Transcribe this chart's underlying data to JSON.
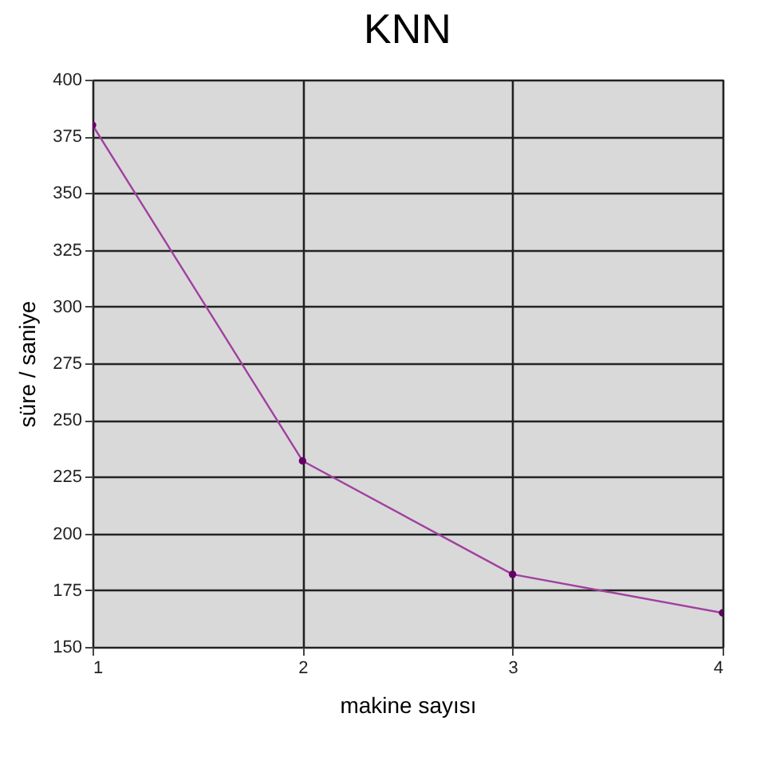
{
  "chart_data": {
    "type": "line",
    "title": "KNN",
    "xlabel": "makine sayısı",
    "ylabel": "süre / saniye",
    "x": [
      1,
      2,
      3,
      4
    ],
    "series": [
      {
        "color": "#a040a0",
        "values": [
          380,
          232,
          182,
          165
        ]
      }
    ],
    "xlim": [
      1,
      4
    ],
    "xticks": [
      1,
      2,
      3,
      4
    ],
    "ylim": [
      150,
      400
    ],
    "yticks": [
      150,
      175,
      200,
      225,
      250,
      275,
      300,
      325,
      350,
      375,
      400
    ],
    "grid": true,
    "marker": "circle"
  }
}
